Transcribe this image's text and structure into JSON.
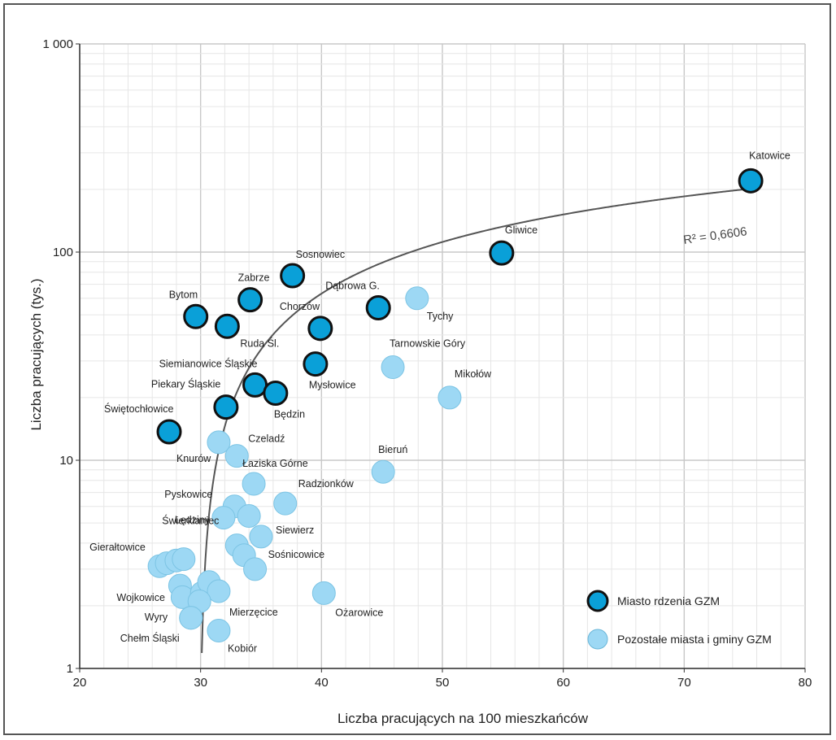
{
  "chart_data": {
    "type": "scatter",
    "title": "",
    "xlabel": "Liczba pracujących na 100 mieszkańców",
    "ylabel": "Liczba pracujących (tys.)",
    "xlim": [
      20,
      80
    ],
    "ylim": [
      1,
      1000
    ],
    "yscale": "log",
    "x_ticks": [
      20,
      30,
      40,
      50,
      60,
      70,
      80
    ],
    "y_ticks": [
      {
        "value": 1,
        "label": "1"
      },
      {
        "value": 10,
        "label": "10"
      },
      {
        "value": 100,
        "label": "100"
      },
      {
        "value": 1000,
        "label": "1 000"
      }
    ],
    "grid": true,
    "legend_position": "bottom-right",
    "trendline": {
      "type": "logarithmic",
      "label": "R² = 0,6606"
    },
    "series": [
      {
        "name": "Miasto rdzenia GZM",
        "color": "#0aa0d8",
        "points": [
          {
            "label": "Katowice",
            "x": 75.5,
            "y": 220
          },
          {
            "label": "Gliwice",
            "x": 54.9,
            "y": 99
          },
          {
            "label": "Sosnowiec",
            "x": 37.6,
            "y": 77
          },
          {
            "label": "Zabrze",
            "x": 34.1,
            "y": 59
          },
          {
            "label": "Bytom",
            "x": 29.6,
            "y": 49
          },
          {
            "label": "Ruda Śl.",
            "x": 32.2,
            "y": 44
          },
          {
            "label": "Dąbrowa G.",
            "x": 44.7,
            "y": 54
          },
          {
            "label": "Chorzów",
            "x": 39.9,
            "y": 43
          },
          {
            "label": "Mysłowice",
            "x": 39.5,
            "y": 29
          },
          {
            "label": "Siemianowice Śląskie",
            "x": 34.5,
            "y": 23
          },
          {
            "label": "Będzin",
            "x": 36.2,
            "y": 21
          },
          {
            "label": "Piekary Śląskie",
            "x": 32.1,
            "y": 18
          },
          {
            "label": "Świętochłowice",
            "x": 27.4,
            "y": 13.7
          }
        ]
      },
      {
        "name": "Pozostałe miasta i gminy GZM",
        "color": "#9dd8f4",
        "points": [
          {
            "label": "Tychy",
            "x": 47.9,
            "y": 60
          },
          {
            "label": "Tarnowskie Góry",
            "x": 45.9,
            "y": 28
          },
          {
            "label": "Mikołów",
            "x": 50.6,
            "y": 20
          },
          {
            "label": "Bieruń",
            "x": 45.1,
            "y": 8.8
          },
          {
            "label": "Knurów",
            "x": 31.5,
            "y": 12.2
          },
          {
            "label": "Czeladź",
            "x": 33.0,
            "y": 10.5
          },
          {
            "label": "Łaziska Górne",
            "x": 34.4,
            "y": 7.7
          },
          {
            "label": "Radzionków",
            "x": 37.0,
            "y": 6.2
          },
          {
            "label": "Pyskowice",
            "x": 32.8,
            "y": 6.0
          },
          {
            "label": "Lędziny",
            "x": 31.9,
            "y": 5.3
          },
          {
            "label": "",
            "x": 34.0,
            "y": 5.4
          },
          {
            "label": "Świerklaniec",
            "x": 33.0,
            "y": 3.9
          },
          {
            "label": "Siewierz",
            "x": 35.0,
            "y": 4.3
          },
          {
            "label": "",
            "x": 33.6,
            "y": 3.5
          },
          {
            "label": "Sośnicowice",
            "x": 34.5,
            "y": 3.0
          },
          {
            "label": "Gierałtowice",
            "x": 26.6,
            "y": 3.1
          },
          {
            "label": "",
            "x": 27.2,
            "y": 3.2
          },
          {
            "label": "",
            "x": 28.0,
            "y": 3.3
          },
          {
            "label": "",
            "x": 28.6,
            "y": 3.35
          },
          {
            "label": "Wojkowice",
            "x": 28.3,
            "y": 2.5
          },
          {
            "label": "",
            "x": 28.5,
            "y": 2.2
          },
          {
            "label": "",
            "x": 30.1,
            "y": 2.3
          },
          {
            "label": "",
            "x": 30.7,
            "y": 2.6
          },
          {
            "label": "Mierzęcice",
            "x": 31.5,
            "y": 2.35
          },
          {
            "label": "",
            "x": 29.9,
            "y": 2.1
          },
          {
            "label": "Wyry",
            "x": 29.2,
            "y": 1.75
          },
          {
            "label": "Chełm Śląski",
            "x": 29.2,
            "y": 1.75
          },
          {
            "label": "Kobiór",
            "x": 31.5,
            "y": 1.52
          },
          {
            "label": "Ożarowice",
            "x": 40.2,
            "y": 2.3
          }
        ]
      }
    ]
  }
}
